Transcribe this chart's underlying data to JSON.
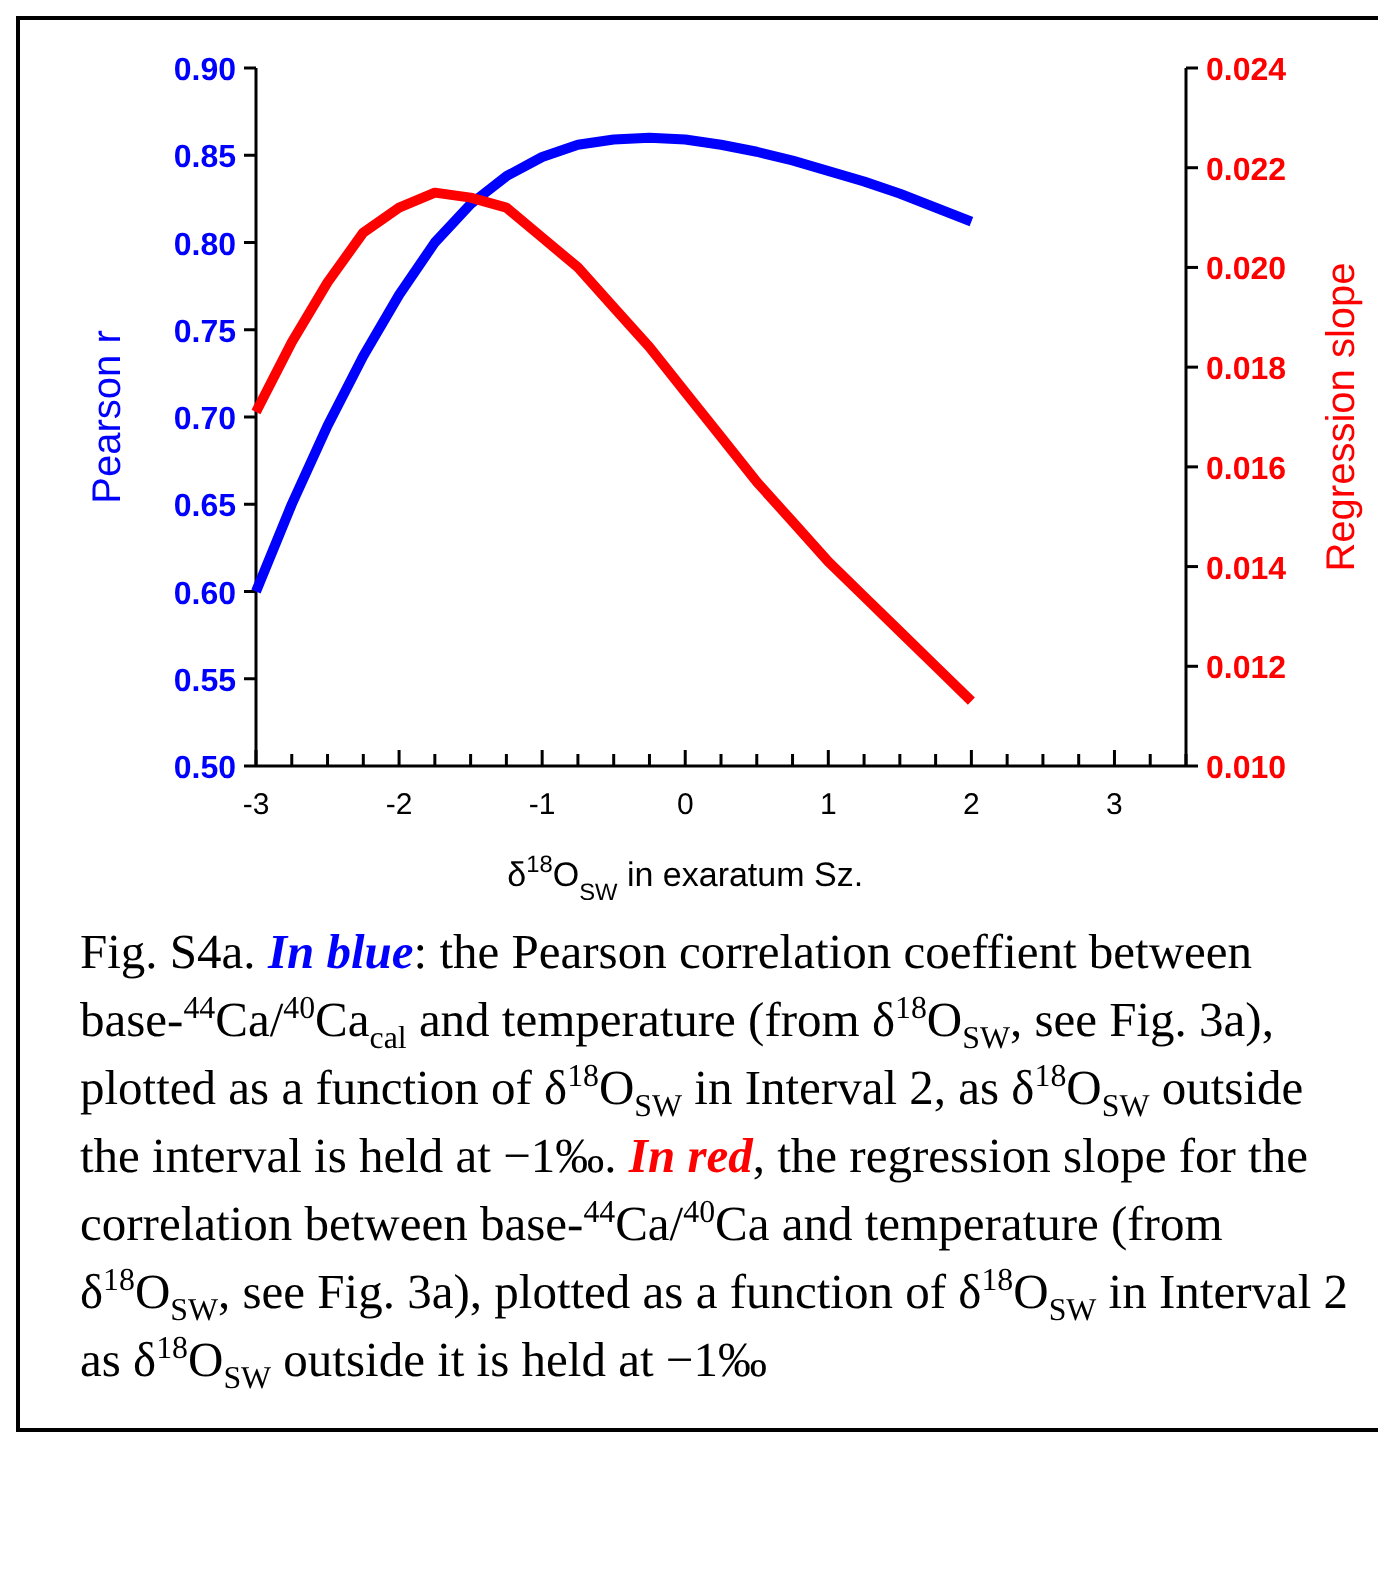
{
  "chart_data": {
    "type": "line",
    "xlabel": "δ$^{18}$O$_{SW}$ in exaratum Sz.",
    "ylabel": "Pearson r",
    "y2label": "Regression slope",
    "x": [
      -3,
      -2.75,
      -2.5,
      -2.25,
      -2,
      -1.75,
      -1.5,
      -1.25,
      -1,
      -0.75,
      -0.5,
      -0.25,
      0,
      0.25,
      0.5,
      0.75,
      1,
      1.25,
      1.5,
      1.75,
      2
    ],
    "series": [
      {
        "color": "#0000ff",
        "values": [
          0.6,
          0.65,
          0.695,
          0.735,
          0.77,
          0.8,
          0.822,
          0.838,
          0.849,
          0.856,
          0.859,
          0.86,
          0.859,
          0.856,
          0.852,
          0.847,
          0.841,
          0.835,
          0.828,
          0.82,
          0.812
        ]
      },
      {
        "color": "#ff0000",
        "axis": "y2",
        "values": [
          0.0171,
          0.0185,
          0.0197,
          0.0207,
          0.0212,
          0.0215,
          0.0214,
          0.0212,
          0.0206,
          0.02,
          0.0192,
          0.0184,
          0.0175,
          0.0166,
          0.0157,
          0.0149,
          0.0141,
          0.0134,
          0.0127,
          0.012,
          0.0113
        ]
      }
    ],
    "xlim": [
      -3,
      3.5
    ],
    "xticks": [
      -3,
      {
        "value": -2.75,
        "label": null
      },
      {
        "value": -2.5,
        "label": null
      },
      {
        "value": -2.25,
        "label": null
      },
      -2,
      {
        "value": -1.75,
        "label": null
      },
      {
        "value": -1.5,
        "label": null
      },
      {
        "value": -1.25,
        "label": null
      },
      -1,
      {
        "value": -0.75,
        "label": null
      },
      {
        "value": -0.5,
        "label": null
      },
      {
        "value": -0.25,
        "label": null
      },
      0,
      {
        "value": 0.25,
        "label": null
      },
      {
        "value": 0.5,
        "label": null
      },
      {
        "value": 0.75,
        "label": null
      },
      1,
      {
        "value": 1.25,
        "label": null
      },
      {
        "value": 1.5,
        "label": null
      },
      {
        "value": 1.75,
        "label": null
      },
      2,
      {
        "value": 2.25,
        "label": null
      },
      {
        "value": 2.5,
        "label": null
      },
      {
        "value": 2.75,
        "label": null
      },
      3,
      {
        "value": 3.25,
        "label": null
      },
      {
        "value": 3.5,
        "label": null
      }
    ],
    "ylim": [
      0.5,
      0.9
    ],
    "yticks": [
      {
        "value": 0.5,
        "label": "0.50"
      },
      0.55,
      {
        "value": 0.6,
        "label": "0.60"
      },
      0.65,
      {
        "value": 0.7,
        "label": "0.70"
      },
      0.75,
      {
        "value": 0.8,
        "label": "0.80"
      },
      0.85,
      {
        "value": 0.9,
        "label": "0.90"
      }
    ],
    "y2lim": [
      0.01,
      0.024
    ],
    "y2ticks": [
      {
        "value": 0.01,
        "label": "0.010"
      },
      0.012,
      0.014,
      0.016,
      0.018,
      {
        "value": 0.02,
        "label": "0.020"
      },
      0.022,
      0.024
    ],
    "marker": "none",
    "line_style": "solid",
    "annotations": [
      "Fig. S4a. ",
      "In blue",
      ": the Pearson correlation coeffient between base-$^{44}$Ca/$^{40}$Ca$_{cal}$ and temperature (from δ$^{18}$O$_{SW}$, see Fig. 3a), plotted as a function of  δ$^{18}$O$_{SW}$ in Interval 2,  as δ$^{18}$O$_{SW}$ outside the interval is held at −1‰. ",
      "In red",
      ", the regression slope for the correlation between base-$^{44}$Ca/$^{40}$Ca and temperature (from δ$^{18}$O$_{SW}$, see Fig. 3a), plotted as a function of  δ$^{18}$O$_{SW}$ in Interval 2 as  δ$^{18}$O$_{SW}$ outside it is held at −1‰"
    ]
  }
}
